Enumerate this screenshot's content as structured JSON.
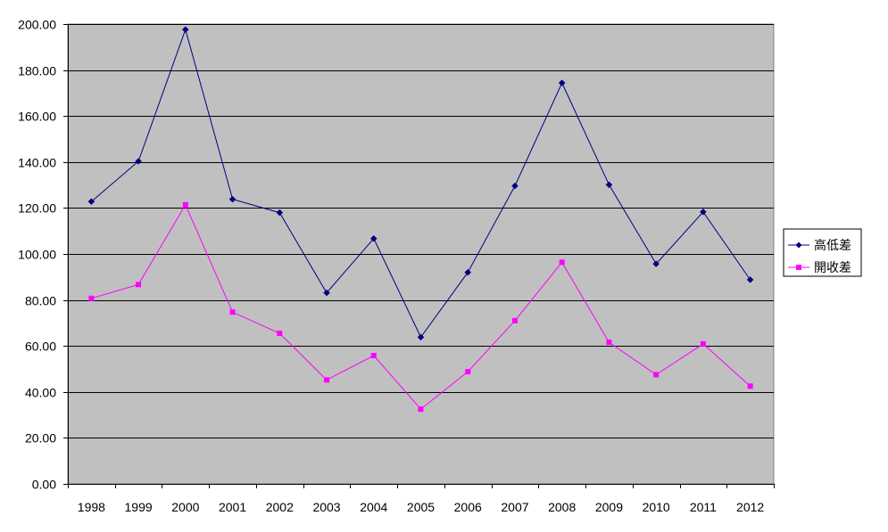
{
  "chart_data": {
    "type": "line",
    "categories": [
      "1998",
      "1999",
      "2000",
      "2001",
      "2002",
      "2003",
      "2004",
      "2005",
      "2006",
      "2007",
      "2008",
      "2009",
      "2010",
      "2011",
      "2012"
    ],
    "series": [
      {
        "name": "高低差",
        "color": "#000080",
        "marker": "diamond",
        "values": [
          122.8,
          140.3,
          197.6,
          123.8,
          118.0,
          83.1,
          106.7,
          63.8,
          92.0,
          129.6,
          174.4,
          130.1,
          95.7,
          118.3,
          88.8
        ]
      },
      {
        "name": "開收差",
        "color": "#ff00ff",
        "marker": "square",
        "values": [
          80.7,
          86.7,
          121.4,
          74.7,
          65.5,
          45.2,
          55.8,
          32.5,
          48.8,
          71.0,
          96.4,
          61.6,
          47.5,
          60.9,
          42.5
        ]
      }
    ],
    "ylim": [
      0,
      200
    ],
    "yticks": [
      0,
      20,
      40,
      60,
      80,
      100,
      120,
      140,
      160,
      180,
      200
    ],
    "ytick_labels": [
      "0.00",
      "20.00",
      "40.00",
      "60.00",
      "80.00",
      "100.00",
      "120.00",
      "140.00",
      "160.00",
      "180.00",
      "200.00"
    ],
    "grid": true,
    "plot_background": "#c0c0c0",
    "legend_position": "right",
    "title": "",
    "xlabel": "",
    "ylabel": ""
  }
}
